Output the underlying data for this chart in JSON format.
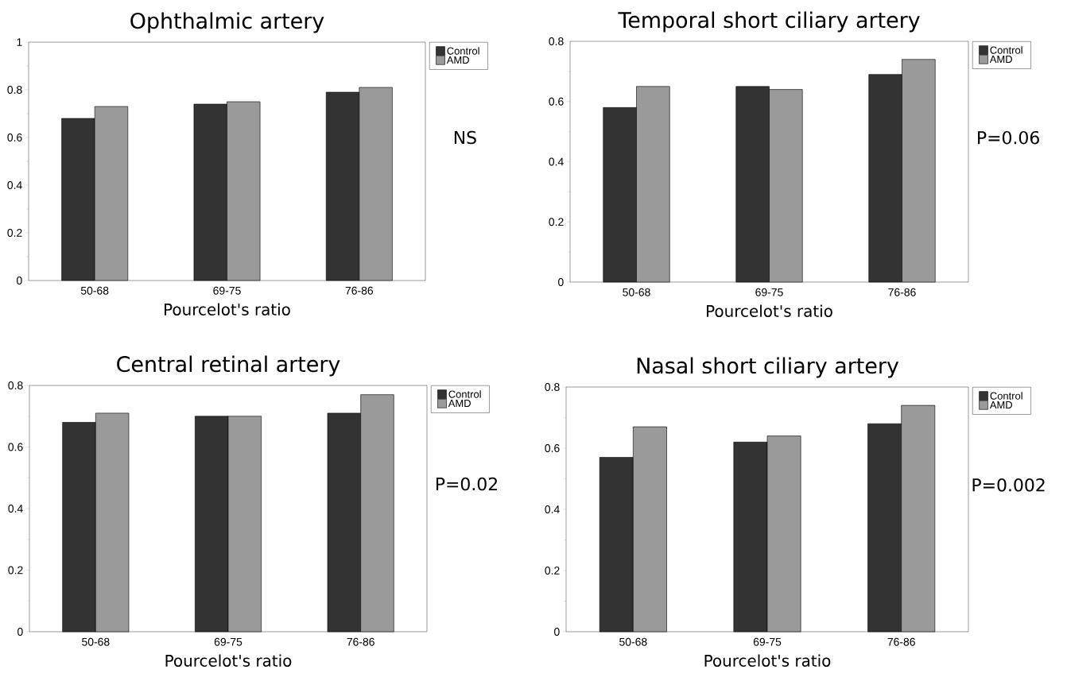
{
  "chart_data": [
    {
      "type": "bar",
      "title": "Ophthalmic artery",
      "xlabel": "Pourcelot's ratio",
      "categories": [
        "50-68",
        "69-75",
        "76-86"
      ],
      "series": [
        {
          "name": "Control",
          "color": "#333333",
          "values": [
            0.68,
            0.74,
            0.79
          ]
        },
        {
          "name": "AMD",
          "color": "#9a9a9a",
          "values": [
            0.73,
            0.75,
            0.81
          ]
        }
      ],
      "ylim": [
        0,
        1
      ],
      "yticks": [
        0,
        0.2,
        0.4,
        0.6,
        0.8,
        1
      ],
      "legend": "top right",
      "annotations": [
        "NS"
      ]
    },
    {
      "type": "bar",
      "title": "Temporal short ciliary artery",
      "xlabel": "Pourcelot's ratio",
      "categories": [
        "50-68",
        "69-75",
        "76-86"
      ],
      "series": [
        {
          "name": "Control",
          "color": "#333333",
          "values": [
            0.58,
            0.65,
            0.69
          ]
        },
        {
          "name": "AMD",
          "color": "#9a9a9a",
          "values": [
            0.65,
            0.64,
            0.74
          ]
        }
      ],
      "ylim": [
        0,
        0.8
      ],
      "yticks": [
        0,
        0.2,
        0.4,
        0.6,
        0.8
      ],
      "legend": "top right",
      "annotations": [
        "P=0.06"
      ]
    },
    {
      "type": "bar",
      "title": "Central retinal artery",
      "xlabel": "Pourcelot's ratio",
      "categories": [
        "50-68",
        "69-75",
        "76-86"
      ],
      "series": [
        {
          "name": "Control",
          "color": "#333333",
          "values": [
            0.68,
            0.7,
            0.71
          ]
        },
        {
          "name": "AMD",
          "color": "#9a9a9a",
          "values": [
            0.71,
            0.7,
            0.77
          ]
        }
      ],
      "ylim": [
        0,
        0.8
      ],
      "yticks": [
        0,
        0.2,
        0.4,
        0.6,
        0.8
      ],
      "legend": "top right",
      "annotations": [
        "P=0.02"
      ]
    },
    {
      "type": "bar",
      "title": "Nasal short ciliary artery",
      "xlabel": "Pourcelot's ratio",
      "categories": [
        "50-68",
        "69-75",
        "76-86"
      ],
      "series": [
        {
          "name": "Control",
          "color": "#333333",
          "values": [
            0.57,
            0.62,
            0.68
          ]
        },
        {
          "name": "AMD",
          "color": "#9a9a9a",
          "values": [
            0.67,
            0.64,
            0.74
          ]
        }
      ],
      "ylim": [
        0,
        0.8
      ],
      "yticks": [
        0,
        0.2,
        0.4,
        0.6,
        0.8
      ],
      "legend": "top right",
      "annotations": [
        "P=0.002"
      ]
    }
  ]
}
